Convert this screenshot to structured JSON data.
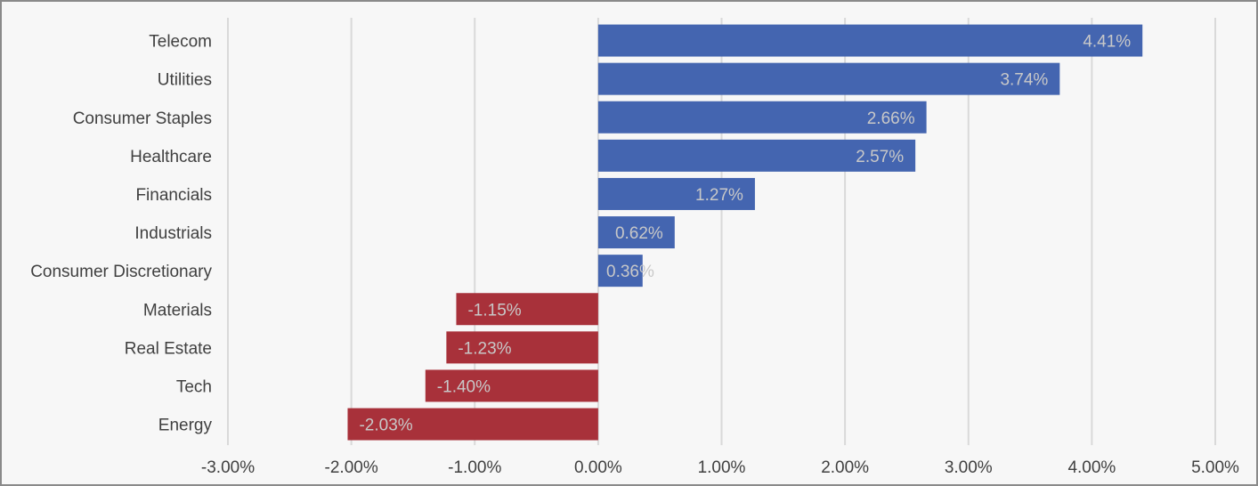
{
  "chart_data": {
    "type": "bar",
    "orientation": "horizontal",
    "title": "",
    "xlabel": "",
    "ylabel": "",
    "categories": [
      "Telecom",
      "Utilities",
      "Consumer Staples",
      "Healthcare",
      "Financials",
      "Industrials",
      "Consumer Discretionary",
      "Materials",
      "Real Estate",
      "Tech",
      "Energy"
    ],
    "values": [
      4.41,
      3.74,
      2.66,
      2.57,
      1.27,
      0.62,
      0.36,
      -1.15,
      -1.23,
      -1.4,
      -2.03
    ],
    "value_labels": [
      "4.41%",
      "3.74%",
      "2.66%",
      "2.57%",
      "1.27%",
      "0.62%",
      "0.36%",
      "-1.15%",
      "-1.23%",
      "-1.40%",
      "-2.03%"
    ],
    "xlim": [
      -3,
      5
    ],
    "x_ticks": [
      -3,
      -2,
      -1,
      0,
      1,
      2,
      3,
      4,
      5
    ],
    "x_tick_labels": [
      "-3.00%",
      "-2.00%",
      "-1.00%",
      "0.00%",
      "1.00%",
      "2.00%",
      "3.00%",
      "4.00%",
      "5.00%"
    ],
    "grid": "vertical",
    "legend": "none",
    "colors": {
      "positive": "#4465b0",
      "negative": "#a8313a",
      "grid": "#d9d9d9",
      "label": "#404040",
      "data_label": "#c8c8c8",
      "background": "#f7f7f7"
    }
  }
}
